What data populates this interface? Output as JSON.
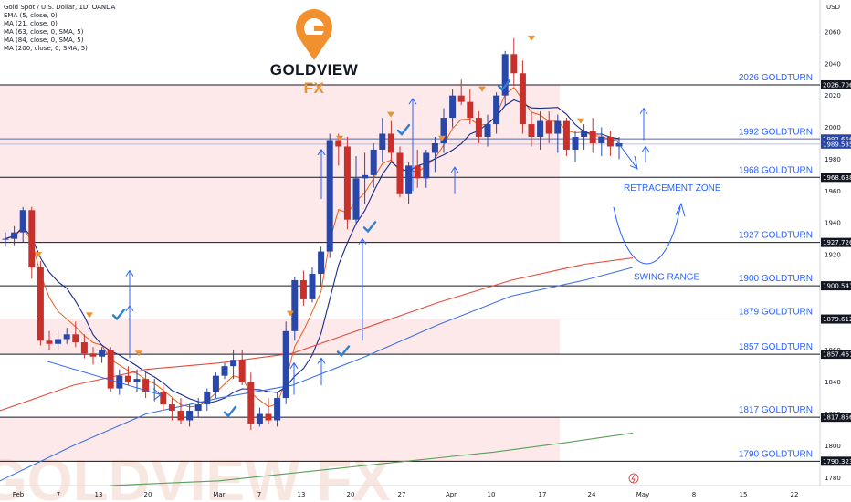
{
  "legend": {
    "symbol": "Gold Spot / U.S. Dollar, 1D, OANDA",
    "studies": [
      "EMA (5, close, 0)",
      "MA (21, close, 0)",
      "MA (63, close, 0, SMA, 5)",
      "MA (84, close, 0, SMA, 5)",
      "MA (200, close, 0, SMA, 5)"
    ]
  },
  "brand": {
    "name": "GOLDVIEW",
    "suffix": "FX"
  },
  "colors": {
    "up": "#2947a9",
    "down": "#c9302c",
    "level_line": "#131722",
    "label_blue": "#2962ff",
    "zone_fill": "#fde8ea",
    "ema5": "#e85d1b",
    "ma21": "#1a2a8e",
    "ma63": "#e74c3c",
    "ma84": "#3f72e6",
    "ma200": "#5aa05a"
  },
  "chart_data": {
    "type": "candlestick",
    "y_axis": {
      "unit": "USD",
      "min": 1775,
      "max": 2080,
      "ticks": [
        1780,
        1800,
        1820,
        1840,
        1860,
        1880,
        1900,
        1920,
        1940,
        1960,
        1980,
        2000,
        2020,
        2040,
        2060
      ]
    },
    "x_axis": {
      "tick_labels": [
        "Feb",
        "7",
        "13",
        "20",
        "Mar",
        "7",
        "13",
        "20",
        "27",
        "Apr",
        "10",
        "17",
        "24",
        "May",
        "8",
        "15",
        "22"
      ]
    },
    "price_tags": [
      {
        "label": "2026.706",
        "value": 2026.7,
        "dark": true
      },
      {
        "label": "1992.656",
        "value": 1992.7,
        "dark": false
      },
      {
        "label": "1989.535",
        "value": 1989.5,
        "dark": false
      },
      {
        "label": "1968.638",
        "value": 1968.6,
        "dark": true
      },
      {
        "label": "1927.726",
        "value": 1927.7,
        "dark": true
      },
      {
        "label": "1900.541",
        "value": 1900.5,
        "dark": true
      },
      {
        "label": "1879.612",
        "value": 1879.6,
        "dark": true
      },
      {
        "label": "1857.461",
        "value": 1857.5,
        "dark": true
      },
      {
        "label": "1817.856",
        "value": 1817.9,
        "dark": true
      },
      {
        "label": "1790.323",
        "value": 1790.3,
        "dark": true
      }
    ],
    "levels": [
      {
        "label": "2026 GOLDTURN",
        "value": 2026.7
      },
      {
        "label": "1992 GOLDTURN",
        "value": 1992.7
      },
      {
        "label": "1968 GOLDTURN",
        "value": 1968.6
      },
      {
        "label": "1927 GOLDTURN",
        "value": 1927.7
      },
      {
        "label": "1900 GOLDTURN",
        "value": 1900.5
      },
      {
        "label": "1879 GOLDTURN",
        "value": 1879.6
      },
      {
        "label": "1857 GOLDTURN",
        "value": 1857.5
      },
      {
        "label": "1817 GOLDTURN",
        "value": 1817.9
      },
      {
        "label": "1790 GOLDTURN",
        "value": 1790.3
      }
    ],
    "zones": [
      {
        "from": 1968.6,
        "to": 2026.7
      },
      {
        "from": 1927.7,
        "to": 1968.6
      },
      {
        "from": 1857.5,
        "to": 1879.6
      },
      {
        "from": 1790.3,
        "to": 1817.9
      }
    ],
    "annotations": [
      {
        "text": "RETRACEMENT ZONE",
        "value": 1962
      },
      {
        "text": "SWING RANGE",
        "value": 1906
      }
    ],
    "candles": [
      [
        1930,
        1934,
        1925,
        1930
      ],
      [
        1930,
        1938,
        1926,
        1934
      ],
      [
        1934,
        1950,
        1928,
        1948
      ],
      [
        1948,
        1950,
        1905,
        1912
      ],
      [
        1912,
        1916,
        1863,
        1866
      ],
      [
        1866,
        1872,
        1860,
        1864
      ],
      [
        1864,
        1872,
        1860,
        1867
      ],
      [
        1867,
        1874,
        1864,
        1870
      ],
      [
        1870,
        1878,
        1862,
        1865
      ],
      [
        1865,
        1870,
        1855,
        1858
      ],
      [
        1858,
        1862,
        1851,
        1856
      ],
      [
        1856,
        1862,
        1852,
        1860
      ],
      [
        1860,
        1862,
        1834,
        1836
      ],
      [
        1836,
        1848,
        1832,
        1844
      ],
      [
        1844,
        1850,
        1838,
        1840
      ],
      [
        1840,
        1848,
        1834,
        1842
      ],
      [
        1842,
        1846,
        1830,
        1834
      ],
      [
        1834,
        1842,
        1828,
        1834
      ],
      [
        1834,
        1838,
        1822,
        1826
      ],
      [
        1826,
        1830,
        1816,
        1822
      ],
      [
        1822,
        1830,
        1814,
        1816
      ],
      [
        1816,
        1826,
        1812,
        1822
      ],
      [
        1822,
        1830,
        1818,
        1826
      ],
      [
        1826,
        1836,
        1822,
        1834
      ],
      [
        1834,
        1846,
        1830,
        1844
      ],
      [
        1844,
        1852,
        1842,
        1850
      ],
      [
        1850,
        1860,
        1842,
        1854
      ],
      [
        1854,
        1860,
        1838,
        1840
      ],
      [
        1840,
        1846,
        1810,
        1814
      ],
      [
        1814,
        1824,
        1812,
        1820
      ],
      [
        1820,
        1830,
        1814,
        1816
      ],
      [
        1816,
        1834,
        1812,
        1830
      ],
      [
        1830,
        1878,
        1826,
        1872
      ],
      [
        1872,
        1906,
        1866,
        1904
      ],
      [
        1904,
        1910,
        1888,
        1892
      ],
      [
        1892,
        1912,
        1890,
        1908
      ],
      [
        1908,
        1925,
        1900,
        1922
      ],
      [
        1922,
        1996,
        1918,
        1992
      ],
      [
        1992,
        1996,
        1976,
        1988
      ],
      [
        1988,
        1994,
        1936,
        1942
      ],
      [
        1942,
        1982,
        1940,
        1968
      ],
      [
        1968,
        1984,
        1952,
        1970
      ],
      [
        1970,
        1990,
        1962,
        1986
      ],
      [
        1986,
        2006,
        1978,
        1996
      ],
      [
        1996,
        2004,
        1978,
        1984
      ],
      [
        1984,
        1988,
        1956,
        1958
      ],
      [
        1958,
        1978,
        1952,
        1976
      ],
      [
        1976,
        1986,
        1962,
        1968
      ],
      [
        1968,
        1986,
        1962,
        1984
      ],
      [
        1984,
        1994,
        1972,
        1990
      ],
      [
        1990,
        2012,
        1984,
        2006
      ],
      [
        2006,
        2024,
        2000,
        2020
      ],
      [
        2020,
        2030,
        2014,
        2016
      ],
      [
        2016,
        2024,
        2002,
        2006
      ],
      [
        2006,
        2010,
        1990,
        1994
      ],
      [
        1994,
        2008,
        1988,
        2002
      ],
      [
        2002,
        2022,
        1996,
        2020
      ],
      [
        2020,
        2048,
        2014,
        2046
      ],
      [
        2046,
        2056,
        2026,
        2034
      ],
      [
        2034,
        2042,
        1996,
        2002
      ],
      [
        2002,
        2010,
        1988,
        1994
      ],
      [
        1994,
        2010,
        1986,
        2004
      ],
      [
        2004,
        2010,
        1990,
        1996
      ],
      [
        1996,
        2008,
        1984,
        2004
      ],
      [
        2004,
        2006,
        1982,
        1986
      ],
      [
        1986,
        1998,
        1978,
        1994
      ],
      [
        1994,
        2002,
        1986,
        1998
      ],
      [
        1998,
        2006,
        1984,
        1990
      ],
      [
        1990,
        2000,
        1982,
        1994
      ],
      [
        1994,
        1998,
        1982,
        1988
      ],
      [
        1988,
        1994,
        1980,
        1990
      ]
    ]
  },
  "watermark_logo": "GOLDVIEW FX"
}
